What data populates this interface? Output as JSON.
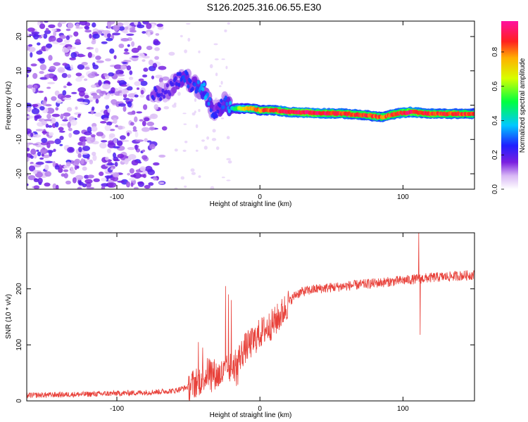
{
  "title": "S126.2025.316.06.55.E30",
  "chart_data": [
    {
      "type": "heatmap",
      "name": "spectrogram",
      "xlabel": "Height of straight line (km)",
      "ylabel": "Frequency (Hz)",
      "xlim": [
        -163,
        150
      ],
      "ylim": [
        -24.5,
        24.5
      ],
      "xticks": [
        -100,
        0,
        100
      ],
      "yticks": [
        -20,
        -10,
        0,
        10,
        20
      ],
      "colorbar": {
        "label": "Normalized spectral amplitude",
        "range": [
          0,
          0.98
        ],
        "ticks": [
          "0.0",
          "0.2",
          "0.4",
          "0.6",
          "0.8"
        ],
        "tick_values": [
          0,
          0.2,
          0.4,
          0.6,
          0.8
        ]
      },
      "noise_region_x": [
        -163,
        -60
      ],
      "noise_level": 0.15,
      "signal_track": {
        "x": [
          -75,
          -65,
          -58,
          -52,
          -47,
          -42,
          -38,
          -34,
          -30,
          -27,
          -24,
          -20,
          -15,
          -10,
          -5,
          0,
          10,
          20,
          40,
          60,
          75,
          85,
          95,
          105,
          120,
          135,
          150
        ],
        "freq": [
          3,
          4,
          7,
          8,
          6,
          5,
          4,
          -1,
          -2,
          0,
          1,
          -1,
          -1,
          -1,
          -1,
          -1.5,
          -1.5,
          -2,
          -2.3,
          -2.5,
          -3,
          -3.5,
          -2.5,
          -2,
          -2.5,
          -2.5,
          -2.5
        ],
        "amplitude": [
          0.25,
          0.2,
          0.25,
          0.3,
          0.25,
          0.35,
          0.4,
          0.3,
          0.25,
          0.3,
          0.3,
          0.4,
          0.6,
          0.75,
          0.8,
          0.85,
          0.9,
          0.95,
          0.95,
          0.9,
          0.9,
          0.85,
          0.9,
          0.95,
          0.9,
          0.9,
          0.85
        ]
      }
    },
    {
      "type": "line",
      "name": "snr",
      "xlabel": "Height of straight line (km)",
      "ylabel": "SNR (10 * v/v)",
      "xlim": [
        -163,
        150
      ],
      "ylim": [
        0,
        300
      ],
      "xticks": [
        -100,
        0,
        100
      ],
      "yticks": [
        0,
        100,
        200,
        300
      ],
      "color": "#e8413a",
      "trend": {
        "x": [
          -163,
          -120,
          -80,
          -60,
          -50,
          -40,
          -35,
          -30,
          -25,
          -20,
          -15,
          -10,
          -5,
          0,
          5,
          10,
          15,
          20,
          25,
          30,
          40,
          60,
          80,
          100,
          120,
          150
        ],
        "y": [
          10,
          12,
          15,
          18,
          25,
          40,
          55,
          45,
          50,
          60,
          75,
          95,
          105,
          120,
          130,
          140,
          155,
          175,
          190,
          195,
          200,
          205,
          210,
          215,
          220,
          225
        ]
      },
      "spikes": [
        {
          "x": -43,
          "y": 105
        },
        {
          "x": -40,
          "y": 95
        },
        {
          "x": -24,
          "y": 205
        },
        {
          "x": -22,
          "y": 190
        },
        {
          "x": -20,
          "y": 180
        },
        {
          "x": 111,
          "y": 300
        },
        {
          "x": 112,
          "y": 118
        }
      ]
    }
  ]
}
